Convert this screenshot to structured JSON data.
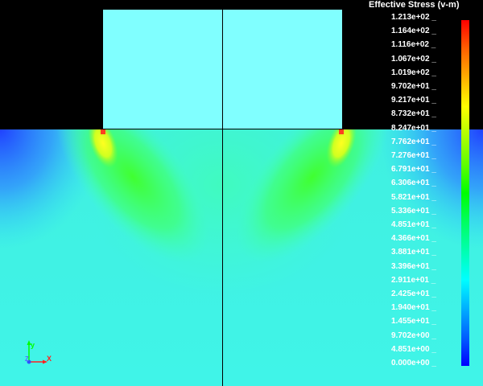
{
  "legend": {
    "title": "Effective Stress (v-m)",
    "labels": [
      "1.213e+02",
      "1.164e+02",
      "1.116e+02",
      "1.067e+02",
      "1.019e+02",
      "9.702e+01",
      "9.217e+01",
      "8.732e+01",
      "8.247e+01",
      "7.762e+01",
      "7.276e+01",
      "6.791e+01",
      "6.306e+01",
      "5.821e+01",
      "5.336e+01",
      "4.851e+01",
      "4.366e+01",
      "3.881e+01",
      "3.396e+01",
      "2.911e+01",
      "2.425e+01",
      "1.940e+01",
      "1.455e+01",
      "9.702e+00",
      "4.851e+00",
      "0.000e+00"
    ],
    "colormap": [
      "#0000ff",
      "#0060ff",
      "#00b0ff",
      "#00ffff",
      "#00ffb0",
      "#00ff60",
      "#00ff00",
      "#60ff00",
      "#b0ff00",
      "#ffff00",
      "#ffb000",
      "#ff6000",
      "#ff0000"
    ]
  },
  "triad": {
    "x_label": "X",
    "y_label": "y",
    "z_label": "Z"
  },
  "colors": {
    "background": "#000000",
    "block": "#80ffff",
    "field_base": "#30ffd0",
    "edge": "#000000"
  }
}
